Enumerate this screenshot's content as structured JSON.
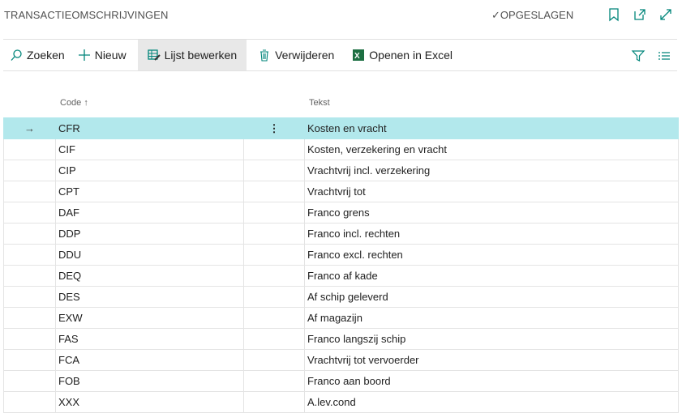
{
  "header": {
    "title": "TRANSACTIEOMSCHRIJVINGEN",
    "status": "OPGESLAGEN"
  },
  "toolbar": {
    "search": "Zoeken",
    "new": "Nieuw",
    "edit_list": "Lijst bewerken",
    "delete": "Verwijderen",
    "excel": "Openen in Excel"
  },
  "columns": {
    "code": "Code",
    "text": "Tekst"
  },
  "accent": "#00857a",
  "selected_row_color": "#b2e8ec",
  "rows": [
    {
      "code": "CFR",
      "text": "Kosten en vracht"
    },
    {
      "code": "CIF",
      "text": "Kosten, verzekering en vracht"
    },
    {
      "code": "CIP",
      "text": "Vrachtvrij incl. verzekering"
    },
    {
      "code": "CPT",
      "text": "Vrachtvrij tot"
    },
    {
      "code": "DAF",
      "text": "Franco grens"
    },
    {
      "code": "DDP",
      "text": "Franco incl. rechten"
    },
    {
      "code": "DDU",
      "text": "Franco excl. rechten"
    },
    {
      "code": "DEQ",
      "text": "Franco af kade"
    },
    {
      "code": "DES",
      "text": "Af schip geleverd"
    },
    {
      "code": "EXW",
      "text": "Af magazijn"
    },
    {
      "code": "FAS",
      "text": "Franco langszij schip"
    },
    {
      "code": "FCA",
      "text": "Vrachtvrij tot vervoerder"
    },
    {
      "code": "FOB",
      "text": "Franco aan boord"
    },
    {
      "code": "XXX",
      "text": "A.lev.cond"
    }
  ]
}
